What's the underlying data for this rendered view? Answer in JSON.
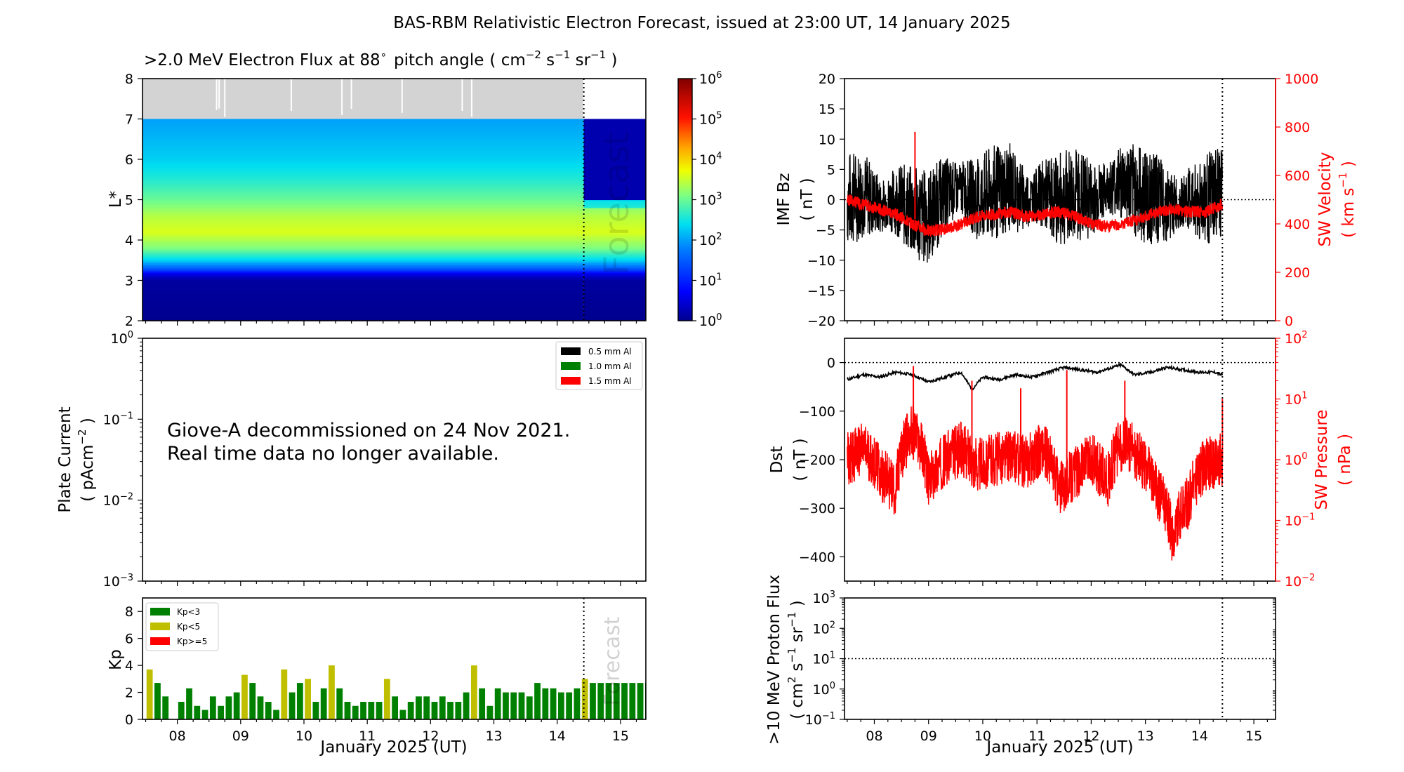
{
  "suptitle": "BAS-RBM Relativistic Electron Forecast, issued at 23:00 UT, 14 January 2025",
  "colors": {
    "black": "#000000",
    "red": "#ff0000",
    "green": "#008000",
    "olive": "#bfbf00",
    "fill_gap": "#d3d3d3",
    "forecast_text": "#c0c0c0"
  },
  "chart_data": [
    {
      "type": "heatmap",
      "panel": "flux",
      "title_main": ">2.0 MeV Electron Flux at 88",
      "title_deg": "∘",
      "title_pitch": "pitch angle",
      "title_units": [
        "( cm",
        "−2",
        " s",
        "−1",
        " sr",
        "−1",
        " )"
      ],
      "ylabel": "L*",
      "ylim": [
        2,
        8
      ],
      "yticks": [
        "2",
        "3",
        "4",
        "5",
        "6",
        "7",
        "8"
      ],
      "xlim": [
        7.45,
        15.4
      ],
      "forecast_start": 14.42,
      "forecast_label": "Forecast",
      "colorbar_log_range": [
        0,
        6
      ],
      "colorbar_ticks": [
        {
          "b": "10",
          "e": "0"
        },
        {
          "b": "10",
          "e": "1"
        },
        {
          "b": "10",
          "e": "2"
        },
        {
          "b": "10",
          "e": "3"
        },
        {
          "b": "10",
          "e": "4"
        },
        {
          "b": "10",
          "e": "5"
        },
        {
          "b": "10",
          "e": "6"
        }
      ],
      "no_data_above_L": 7.0,
      "log_flux_profile_L": [
        [
          2.0,
          0.0
        ],
        [
          3.0,
          0.1
        ],
        [
          3.15,
          0.5
        ],
        [
          3.3,
          1.5
        ],
        [
          3.5,
          2.3
        ],
        [
          3.8,
          3.1
        ],
        [
          4.2,
          3.6
        ],
        [
          4.6,
          3.4
        ],
        [
          5.0,
          3.0
        ],
        [
          5.5,
          2.6
        ],
        [
          6.0,
          2.3
        ],
        [
          6.5,
          2.15
        ],
        [
          7.0,
          2.0
        ]
      ],
      "gap_lines_day": [
        8.62,
        8.66,
        8.75,
        9.8,
        10.6,
        10.75,
        11.55,
        12.5,
        12.65,
        14.42
      ]
    },
    {
      "type": "line",
      "panel": "plate_current",
      "ylabel": [
        "Plate Current",
        "( pAcm",
        "−2",
        " )"
      ],
      "yscale": "log",
      "ylim": [
        0.001,
        1
      ],
      "yticks": [
        {
          "b": "10",
          "e": "0"
        },
        {
          "b": "10",
          "e": "−1"
        },
        {
          "b": "10",
          "e": "−2"
        },
        {
          "b": "10",
          "e": "−3"
        }
      ],
      "series": [
        {
          "name": "0.5 mm Al",
          "color": "#000000",
          "values": []
        },
        {
          "name": "1.0 mm Al",
          "color": "#008000",
          "values": []
        },
        {
          "name": "1.5 mm Al",
          "color": "#ff0000",
          "values": []
        }
      ],
      "annotation": [
        "Giove-A decommissioned on 24 Nov 2021.",
        "Real time data no longer available."
      ]
    },
    {
      "type": "bar",
      "panel": "kp",
      "ylabel": "Kp",
      "ylim": [
        0,
        9
      ],
      "yticks": [
        "0",
        "2",
        "4",
        "6",
        "8"
      ],
      "xlabel": "January 2025 (UT)",
      "xticks": [
        "08",
        "09",
        "10",
        "11",
        "12",
        "13",
        "14",
        "15"
      ],
      "xlim": [
        7.45,
        15.4
      ],
      "forecast_start": 14.42,
      "forecast_label": "Forecast",
      "legend": [
        {
          "name": "Kp<3",
          "color": "#008000"
        },
        {
          "name": "Kp<5",
          "color": "#bfbf00"
        },
        {
          "name": "Kp>=5",
          "color": "#ff0000"
        }
      ],
      "bin_days": 0.125,
      "start_day": 7.5,
      "values": [
        3.7,
        2.7,
        1.7,
        0,
        1.3,
        2.3,
        1.0,
        0.7,
        1.7,
        1.0,
        1.7,
        2.0,
        3.3,
        2.7,
        1.7,
        1.3,
        0.7,
        3.7,
        2.0,
        2.7,
        3.0,
        1.3,
        2.3,
        4.0,
        2.3,
        1.3,
        1.0,
        1.3,
        1.3,
        1.3,
        3.0,
        1.7,
        0.7,
        1.3,
        1.7,
        1.7,
        1.3,
        1.7,
        1.3,
        1.3,
        2.0,
        4.0,
        2.3,
        1.0,
        2.3,
        2.0,
        2.0,
        2.0,
        1.7,
        2.7,
        2.3,
        2.3,
        2.0,
        2.0,
        2.3,
        3.0,
        2.7,
        2.7,
        2.7,
        2.7,
        2.7,
        2.7,
        2.7,
        2.7
      ]
    },
    {
      "type": "line",
      "panel": "imf_sw",
      "ylabel_left": [
        "IMF Bz",
        "( nT )"
      ],
      "ylim_left": [
        -20,
        20
      ],
      "yticks_left": [
        "−20",
        "−15",
        "−10",
        "−5",
        "0",
        "5",
        "10",
        "15",
        "20"
      ],
      "ylabel_right": [
        "SW Velocity",
        "( km s",
        "−1",
        " )"
      ],
      "ylim_right": [
        0,
        1000
      ],
      "yticks_right": [
        "0",
        "200",
        "400",
        "600",
        "800",
        "1000"
      ],
      "xlim": [
        7.45,
        15.4
      ],
      "forecast_start": 14.42,
      "series": [
        {
          "name": "IMF Bz",
          "color": "#000000",
          "axis": "left",
          "x": [
            7.5,
            7.8,
            8.1,
            8.4,
            8.7,
            9.0,
            9.3,
            9.6,
            9.9,
            10.2,
            10.5,
            10.8,
            11.1,
            11.4,
            11.7,
            12.0,
            12.3,
            12.6,
            12.9,
            13.2,
            13.5,
            13.8,
            14.1,
            14.4
          ],
          "y": [
            0,
            1,
            -1,
            0,
            -2,
            -3,
            1,
            2,
            0,
            1,
            2,
            0,
            1,
            0,
            1,
            0,
            2,
            3,
            1,
            0,
            -1,
            0,
            0,
            1
          ]
        },
        {
          "name": "SW Velocity",
          "color": "#ff0000",
          "axis": "right",
          "x": [
            7.5,
            7.8,
            8.1,
            8.4,
            8.7,
            9.0,
            9.3,
            9.6,
            9.9,
            10.2,
            10.5,
            10.8,
            11.1,
            11.4,
            11.7,
            12.0,
            12.3,
            12.6,
            12.9,
            13.2,
            13.5,
            13.8,
            14.1,
            14.4
          ],
          "y": [
            500,
            480,
            460,
            440,
            400,
            370,
            380,
            400,
            430,
            440,
            450,
            430,
            440,
            450,
            430,
            400,
            390,
            400,
            420,
            450,
            460,
            450,
            450,
            480
          ]
        }
      ]
    },
    {
      "type": "line",
      "panel": "dst_pressure",
      "ylabel_left": [
        "Dst",
        "( nT )"
      ],
      "ylim_left": [
        -450,
        50
      ],
      "yticks_left": [
        "−400",
        "−300",
        "−200",
        "−100",
        "0"
      ],
      "ylabel_right": [
        "SW Pressure",
        "( nPa )"
      ],
      "yscale_right": "log",
      "ylim_right": [
        0.01,
        100
      ],
      "yticks_right": [
        {
          "b": "10",
          "e": "−2"
        },
        {
          "b": "10",
          "e": "−1"
        },
        {
          "b": "10",
          "e": "0"
        },
        {
          "b": "10",
          "e": "1"
        },
        {
          "b": "10",
          "e": "2"
        }
      ],
      "xlim": [
        7.45,
        15.4
      ],
      "forecast_start": 14.42,
      "series": [
        {
          "name": "Dst",
          "color": "#000000",
          "axis": "left",
          "x": [
            7.5,
            7.8,
            8.1,
            8.4,
            8.7,
            9.0,
            9.3,
            9.6,
            9.8,
            10.0,
            10.3,
            10.6,
            10.9,
            11.2,
            11.5,
            11.8,
            12.1,
            12.4,
            12.55,
            12.8,
            13.1,
            13.4,
            13.7,
            14.0,
            14.3,
            14.4
          ],
          "y": [
            -35,
            -25,
            -30,
            -20,
            -25,
            -40,
            -30,
            -20,
            -55,
            -30,
            -35,
            -25,
            -30,
            -20,
            -10,
            -15,
            -20,
            -10,
            -5,
            -25,
            -20,
            -10,
            -15,
            -20,
            -20,
            -25
          ]
        },
        {
          "name": "SW Pressure",
          "color": "#ff0000",
          "axis": "right",
          "x": [
            7.5,
            7.8,
            8.1,
            8.4,
            8.7,
            9.0,
            9.3,
            9.6,
            9.9,
            10.2,
            10.5,
            10.8,
            11.1,
            11.4,
            11.7,
            12.0,
            12.3,
            12.6,
            12.9,
            13.2,
            13.5,
            13.8,
            14.1,
            14.4
          ],
          "y": [
            1.0,
            1.5,
            0.6,
            0.3,
            3.0,
            0.4,
            1.0,
            1.5,
            0.8,
            1.0,
            1.2,
            0.9,
            1.5,
            0.3,
            0.6,
            1.0,
            0.4,
            2.0,
            1.0,
            0.3,
            0.05,
            0.2,
            0.8,
            1.0
          ]
        }
      ]
    },
    {
      "type": "line",
      "panel": "proton",
      "ylabel": [
        ">10 MeV Proton Flux",
        "( cm",
        "2",
        " s",
        "−1",
        " sr",
        "−1",
        " )"
      ],
      "yscale": "log",
      "ylim": [
        0.1,
        1000
      ],
      "yticks": [
        {
          "b": "10",
          "e": "−1"
        },
        {
          "b": "10",
          "e": "0"
        },
        {
          "b": "10",
          "e": "1"
        },
        {
          "b": "10",
          "e": "2"
        },
        {
          "b": "10",
          "e": "3"
        }
      ],
      "threshold": 10,
      "xlabel": "January 2025 (UT)",
      "xticks": [
        "08",
        "09",
        "10",
        "11",
        "12",
        "13",
        "14",
        "15"
      ],
      "xlim": [
        7.45,
        15.4
      ],
      "forecast_start": 14.42,
      "series": []
    }
  ]
}
